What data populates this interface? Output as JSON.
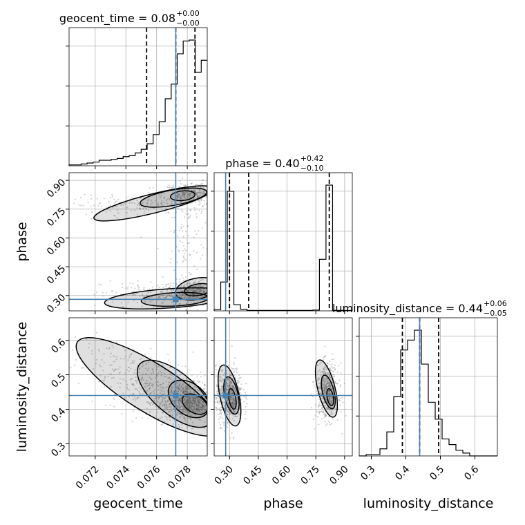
{
  "chart_data": {
    "type": "corner",
    "colors": {
      "truth": "#4682b4",
      "line": "#000000",
      "grid": "#b0b0b0",
      "scatter": "#7f7f7f"
    },
    "parameters": [
      {
        "key": "geocent_time",
        "label": "geocent_time",
        "range": [
          0.0703,
          0.0793
        ],
        "ticks": [
          0.072,
          0.074,
          0.076,
          0.078
        ],
        "tick_labels": [
          "0.072",
          "0.074",
          "0.076",
          "0.078"
        ],
        "truth": 0.07725,
        "quantiles": [
          0.07535,
          0.07725,
          0.0785
        ],
        "title": {
          "text": "geocent_time = 0.08",
          "plus": "+0.00",
          "minus": "−0.00"
        },
        "hist": {
          "edges_from": 0.0703,
          "edges_to": 0.0793,
          "counts": [
            1,
            1,
            2,
            3,
            4,
            6,
            6,
            7,
            8,
            10,
            11,
            14,
            18,
            24,
            34,
            48,
            73,
            89,
            122,
            136,
            137,
            102,
            115
          ]
        }
      },
      {
        "key": "phase",
        "label": "phase",
        "range": [
          0.22,
          0.94
        ],
        "ticks": [
          0.3,
          0.45,
          0.6,
          0.75,
          0.9
        ],
        "tick_labels": [
          "0.30",
          "0.45",
          "0.60",
          "0.75",
          "0.90"
        ],
        "truth": 0.28,
        "quantiles": [
          0.3,
          0.4,
          0.82
        ],
        "title": {
          "text": "phase = 0.40",
          "plus": "+0.42",
          "minus": "−0.10"
        },
        "hist": {
          "edges_from": 0.22,
          "edges_to": 0.94,
          "counts": [
            3,
            70,
            290,
            15,
            4,
            1,
            1,
            1,
            1,
            1,
            1,
            1,
            1,
            1,
            1,
            2,
            125,
            305,
            1,
            1,
            1
          ]
        }
      },
      {
        "key": "luminosity_distance",
        "label": "luminosity_distance",
        "range": [
          0.265,
          0.665
        ],
        "ticks": [
          0.3,
          0.4,
          0.5,
          0.6
        ],
        "tick_labels": [
          "0.3",
          "0.4",
          "0.5",
          "0.6"
        ],
        "truth": 0.44,
        "quantiles": [
          0.39,
          0.44,
          0.495
        ],
        "title": {
          "text": "luminosity_distance = 0.44",
          "plus": "+0.06",
          "minus": "−0.05"
        },
        "hist": {
          "edges_from": 0.265,
          "edges_to": 0.665,
          "counts": [
            0,
            1,
            1,
            5,
            17,
            42,
            75,
            82,
            89,
            65,
            38,
            26,
            12,
            8,
            4,
            2,
            0,
            0,
            0,
            0
          ]
        }
      }
    ],
    "pairs": [
      {
        "x": "geocent_time",
        "y": "phase",
        "clusters": [
          {
            "cx": 0.0786,
            "cy": 0.32,
            "sx": 0.0011,
            "sy": 0.03,
            "n": 450
          },
          {
            "cx": 0.0784,
            "cy": 0.83,
            "sx": 0.001,
            "sy": 0.03,
            "n": 320
          },
          {
            "cx": 0.076,
            "cy": 0.3,
            "sx": 0.0018,
            "sy": 0.04,
            "n": 160
          },
          {
            "cx": 0.0745,
            "cy": 0.77,
            "sx": 0.002,
            "sy": 0.025,
            "n": 140
          },
          {
            "cx": 0.078,
            "cy": 0.58,
            "sx": 0.0008,
            "sy": 0.15,
            "n": 120
          }
        ],
        "contours": [
          {
            "cx": 0.0772,
            "cy": 0.28,
            "rx": 0.0022,
            "ry": 0.035,
            "rot": -3
          },
          {
            "cx": 0.0768,
            "cy": 0.285,
            "rx": 0.0042,
            "ry": 0.05,
            "rot": -4
          },
          {
            "cx": 0.0787,
            "cy": 0.33,
            "rx": 0.0009,
            "ry": 0.03,
            "rot": -10
          },
          {
            "cx": 0.0786,
            "cy": 0.335,
            "rx": 0.0014,
            "ry": 0.055,
            "rot": -12
          },
          {
            "cx": 0.0777,
            "cy": 0.82,
            "rx": 0.0008,
            "ry": 0.025,
            "rot": -6
          },
          {
            "cx": 0.0771,
            "cy": 0.81,
            "rx": 0.0022,
            "ry": 0.04,
            "rot": -10
          },
          {
            "cx": 0.0758,
            "cy": 0.78,
            "rx": 0.004,
            "ry": 0.05,
            "rot": -14
          }
        ]
      },
      {
        "x": "geocent_time",
        "y": "luminosity_distance",
        "clusters": [
          {
            "cx": 0.078,
            "cy": 0.42,
            "sx": 0.001,
            "sy": 0.03,
            "n": 650
          },
          {
            "cx": 0.076,
            "cy": 0.47,
            "sx": 0.0015,
            "sy": 0.035,
            "n": 260
          },
          {
            "cx": 0.073,
            "cy": 0.53,
            "sx": 0.0015,
            "sy": 0.04,
            "n": 110
          }
        ],
        "contours": [
          {
            "cx": 0.0785,
            "cy": 0.415,
            "rx": 0.0009,
            "ry": 0.025,
            "rot": 30
          },
          {
            "cx": 0.0781,
            "cy": 0.43,
            "rx": 0.0015,
            "ry": 0.045,
            "rot": 38
          },
          {
            "cx": 0.0772,
            "cy": 0.445,
            "rx": 0.003,
            "ry": 0.06,
            "rot": 40
          },
          {
            "cx": 0.0755,
            "cy": 0.465,
            "rx": 0.0055,
            "ry": 0.07,
            "rot": 32
          }
        ]
      },
      {
        "x": "phase",
        "y": "luminosity_distance",
        "clusters": [
          {
            "cx": 0.3,
            "cy": 0.44,
            "sx": 0.035,
            "sy": 0.04,
            "n": 600
          },
          {
            "cx": 0.81,
            "cy": 0.45,
            "sx": 0.03,
            "sy": 0.04,
            "n": 520
          }
        ],
        "contours": [
          {
            "cx": 0.315,
            "cy": 0.43,
            "rx": 0.018,
            "ry": 0.03,
            "rot": -10
          },
          {
            "cx": 0.31,
            "cy": 0.44,
            "rx": 0.035,
            "ry": 0.055,
            "rot": -12
          },
          {
            "cx": 0.3,
            "cy": 0.44,
            "rx": 0.05,
            "ry": 0.09,
            "rot": -12
          },
          {
            "cx": 0.825,
            "cy": 0.435,
            "rx": 0.016,
            "ry": 0.025,
            "rot": -10
          },
          {
            "cx": 0.815,
            "cy": 0.45,
            "rx": 0.03,
            "ry": 0.05,
            "rot": -14
          },
          {
            "cx": 0.805,
            "cy": 0.46,
            "rx": 0.045,
            "ry": 0.085,
            "rot": -14
          }
        ]
      }
    ]
  }
}
